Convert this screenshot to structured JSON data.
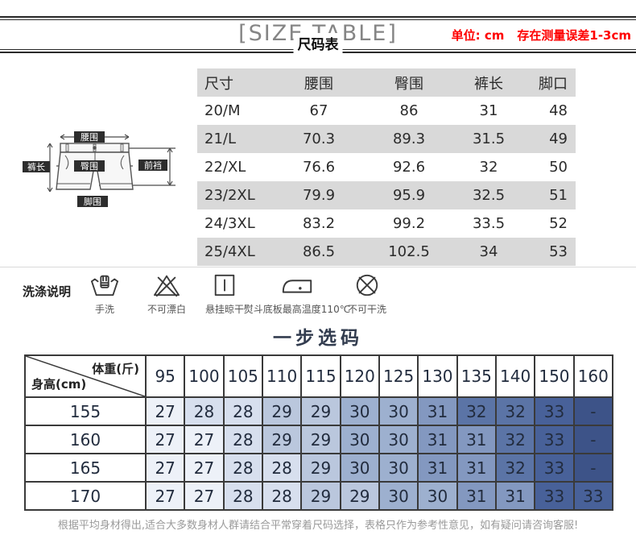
{
  "header": {
    "title_en": "[SIZE TABLE]",
    "title_cn": "尺码表",
    "unit_label": "单位: cm",
    "tolerance_label": "存在测量误差1-3cm"
  },
  "size_table": {
    "columns": [
      "尺寸",
      "腰围",
      "臀围",
      "裤长",
      "脚口"
    ],
    "rows": [
      [
        "20/M",
        "67",
        "86",
        "31",
        "48"
      ],
      [
        "21/L",
        "70.3",
        "89.3",
        "31.5",
        "49"
      ],
      [
        "22/XL",
        "76.6",
        "92.6",
        "32",
        "50"
      ],
      [
        "23/2XL",
        "79.9",
        "95.9",
        "32.5",
        "51"
      ],
      [
        "24/3XL",
        "83.2",
        "99.2",
        "33.5",
        "52"
      ],
      [
        "25/4XL",
        "86.5",
        "102.5",
        "34",
        "53"
      ]
    ]
  },
  "diagram": {
    "waist_label": "腰围",
    "front_rise_label": "前裆",
    "length_label": "裤长",
    "hip_label": "臀围",
    "leg_opening_label": "脚围"
  },
  "care": {
    "title": "洗涤说明",
    "items": [
      {
        "icon": "hand-wash-icon",
        "label": "手洗"
      },
      {
        "icon": "no-bleach-icon",
        "label": "不可漂白"
      },
      {
        "icon": "hang-dry-icon",
        "label": "悬挂晾干"
      },
      {
        "icon": "iron-110c-icon",
        "label": "熨斗底板最高温度110℃"
      },
      {
        "icon": "no-dry-clean-icon",
        "label": "不可干洗"
      }
    ]
  },
  "size_picker": {
    "title": "一步选码",
    "corner_top": "体重(斤)",
    "corner_bottom": "身高(cm)",
    "weights": [
      "95",
      "100",
      "105",
      "110",
      "115",
      "120",
      "125",
      "130",
      "135",
      "140",
      "150",
      "160"
    ],
    "rows": [
      {
        "height": "155",
        "sizes": [
          "27",
          "28",
          "28",
          "29",
          "29",
          "30",
          "30",
          "31",
          "32",
          "32",
          "33",
          "-"
        ]
      },
      {
        "height": "160",
        "sizes": [
          "27",
          "27",
          "28",
          "29",
          "29",
          "30",
          "30",
          "31",
          "31",
          "32",
          "33",
          "-"
        ]
      },
      {
        "height": "165",
        "sizes": [
          "27",
          "27",
          "28",
          "28",
          "29",
          "30",
          "30",
          "31",
          "31",
          "32",
          "33",
          "-"
        ]
      },
      {
        "height": "170",
        "sizes": [
          "27",
          "27",
          "28",
          "28",
          "29",
          "29",
          "30",
          "30",
          "31",
          "31",
          "33",
          "33"
        ]
      }
    ],
    "value_colors": {
      "27": "#edf1f8",
      "28": "#d7dfee",
      "29": "#bac7dd",
      "30": "#9db0cf",
      "31": "#8398c0",
      "32": "#5b74a6",
      "33": "#486199",
      "-": "#3d5388"
    },
    "footnote": "根据平均身材得出,适合大多数身材人群请结合平常穿着尺码选择，表格只作为参考性意见，如有疑问请咨询客服!"
  },
  "colors": {
    "accent_red": "#fe0000",
    "table_stripe": "#d9d9d9",
    "title_navy": "#323c4f",
    "grid_line": "#3a3a3a"
  }
}
